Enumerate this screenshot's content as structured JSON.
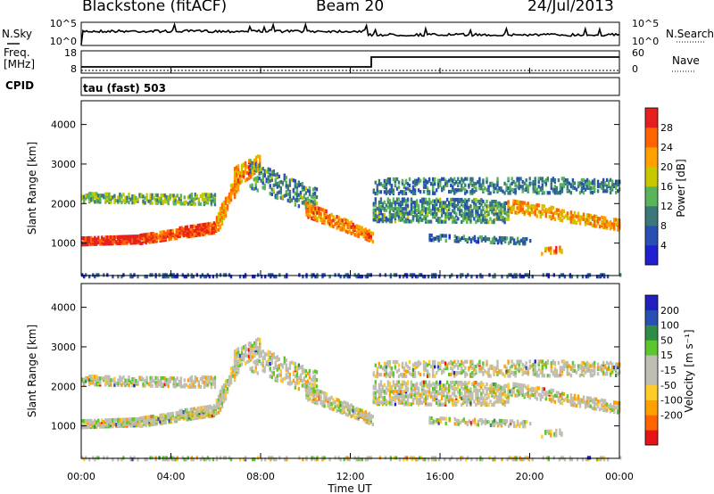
{
  "header": {
    "site": "Blackstone (fitACF)",
    "beam": "Beam 20",
    "date": "24/Jul/2013"
  },
  "top_panel": {
    "nsky_label": "N.Sky",
    "nsearch_label": "N.Search",
    "freq_label": "Freq.",
    "freq_unit": "[MHz]",
    "nave_label": "Nave",
    "cpid_label": "CPID",
    "cpid_text": "tau (fast) 503",
    "noise_left_ticks": [
      "10^5",
      "10^0"
    ],
    "noise_right_ticks": [
      "10^5",
      "10^0"
    ],
    "freq_ticks": [
      "18",
      "8"
    ],
    "nave_ticks": [
      "60",
      "0"
    ]
  },
  "colors": {
    "power_scale": [
      "#2020d0",
      "#2850b4",
      "#3c7878",
      "#5ab45a",
      "#c8c800",
      "#ffa000",
      "#ff6400",
      "#e62020"
    ],
    "velocity_scale": [
      "#e61414",
      "#ff6400",
      "#ffa000",
      "#ffcc28",
      "#bebeb4",
      "#bebeb4",
      "#5ac82d",
      "#2d8c46",
      "#2850b4",
      "#2020be"
    ]
  },
  "chart_data": [
    {
      "type": "heatmap",
      "title": "Power",
      "ylabel": "Slant Range [km]",
      "xlabel": "Time UT",
      "x_ticks": [
        "00:00",
        "04:00",
        "08:00",
        "12:00",
        "16:00",
        "20:00",
        "00:00"
      ],
      "y_ticks": [
        "1000",
        "2000",
        "3000",
        "4000"
      ],
      "ylim": [
        180,
        4600
      ],
      "xlim_hours": [
        0,
        24
      ],
      "colorbar": {
        "label": "Power [dB]",
        "ticks": [
          "4",
          "8",
          "12",
          "16",
          "20",
          "24",
          "28"
        ],
        "range": [
          0,
          32
        ]
      }
    },
    {
      "type": "heatmap",
      "title": "Velocity",
      "ylabel": "Slant Range [km]",
      "xlabel": "Time UT",
      "x_ticks": [
        "00:00",
        "04:00",
        "08:00",
        "12:00",
        "16:00",
        "20:00",
        "00:00"
      ],
      "y_ticks": [
        "1000",
        "2000",
        "3000",
        "4000"
      ],
      "ylim": [
        180,
        4600
      ],
      "xlim_hours": [
        0,
        24
      ],
      "colorbar": {
        "label": "Velocity [m s⁻¹]",
        "ticks": [
          "200",
          "100",
          "50",
          "15",
          "-15",
          "-50",
          "-100",
          "-200"
        ]
      }
    }
  ]
}
